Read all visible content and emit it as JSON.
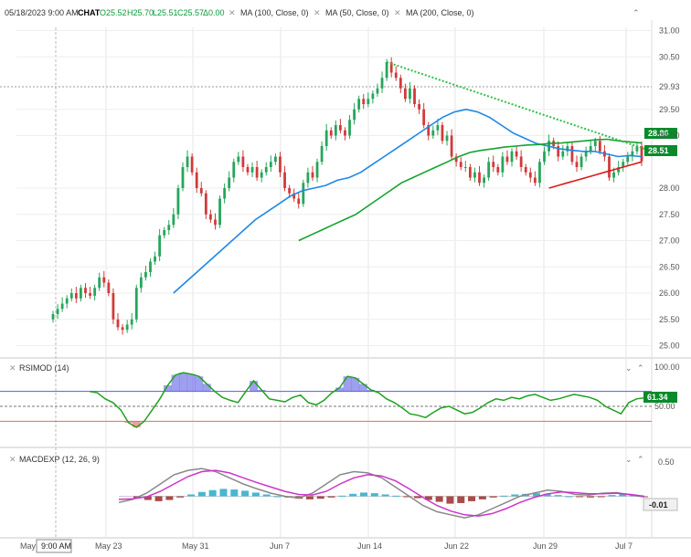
{
  "header": {
    "datetime": "05/18/2023 9:00 AM",
    "symbol": "CHAT",
    "open": "O25.52",
    "high": "H25.70",
    "low": "L25.51",
    "close": "C25.57",
    "change": "Δ0.00",
    "studies": [
      "MA (100, Close, 0)",
      "MA (50, Close, 0)",
      "MA (200, Close, 0)"
    ]
  },
  "price_axis": {
    "ticks": [
      "31.00",
      "30.50",
      "29.50",
      "29.00",
      "28.00",
      "27.50",
      "27.00",
      "26.50",
      "26.00",
      "25.50",
      "25.00"
    ],
    "reference_label": "29.93",
    "badges": [
      {
        "value": "28.86",
        "color": "#0a8a2a"
      },
      {
        "value": "28.51",
        "color": "#0a8a2a"
      }
    ]
  },
  "rsi_panel": {
    "title": "RSIMOD (14)",
    "ticks": [
      "100.00",
      "50.00"
    ],
    "value": "61.34"
  },
  "macd_panel": {
    "title": "MACDEXP (12, 26, 9)",
    "ticks": [
      "0.50"
    ],
    "value": "-0.01"
  },
  "time_axis": {
    "labels": [
      "May",
      "9:00 AM",
      "May 23",
      "May 31",
      "Jun 7",
      "Jun 14",
      "Jun 22",
      "Jun 29",
      "Jul 7"
    ]
  },
  "colors": {
    "up": "#26a65b",
    "down": "#d23a3a",
    "ma100": "#1e88e5",
    "ma50": "#14a32d",
    "ma200": "#d81b1b",
    "trendline": "#2fbf4a",
    "rsi": "#1fa01f",
    "macd": "#888888",
    "signal": "#cc33cc"
  },
  "chart_data": [
    {
      "type": "candlestick",
      "title": "CHAT",
      "ylim": [
        24.8,
        31.2
      ],
      "x_labels": [
        "May 23",
        "May 31",
        "Jun 7",
        "Jun 14",
        "Jun 22",
        "Jun 29",
        "Jul 7"
      ],
      "close": [
        25.6,
        25.7,
        25.8,
        25.9,
        26.0,
        25.9,
        26.1,
        26.0,
        25.95,
        26.1,
        26.3,
        26.2,
        26.0,
        25.5,
        25.35,
        25.3,
        25.4,
        25.5,
        26.1,
        26.3,
        26.4,
        26.6,
        26.7,
        27.1,
        27.2,
        27.3,
        27.5,
        28.0,
        28.4,
        28.6,
        28.3,
        28.0,
        27.9,
        27.5,
        27.4,
        27.3,
        27.8,
        28.0,
        28.2,
        28.5,
        28.6,
        28.4,
        28.3,
        28.4,
        28.2,
        28.3,
        28.4,
        28.5,
        28.6,
        28.3,
        28.0,
        27.9,
        27.8,
        27.7,
        28.1,
        28.3,
        28.2,
        28.5,
        28.8,
        29.1,
        29.0,
        29.2,
        29.1,
        29.0,
        29.3,
        29.5,
        29.7,
        29.6,
        29.7,
        29.8,
        29.9,
        30.1,
        30.4,
        30.2,
        30.1,
        29.9,
        29.7,
        29.9,
        29.6,
        29.5,
        29.2,
        29.0,
        29.1,
        29.2,
        28.9,
        29.0,
        28.6,
        28.5,
        28.4,
        28.4,
        28.2,
        28.3,
        28.1,
        28.2,
        28.5,
        28.4,
        28.3,
        28.6,
        28.5,
        28.7,
        28.6,
        28.4,
        28.3,
        28.2,
        28.1,
        28.5,
        28.7,
        28.9,
        28.8,
        28.6,
        28.7,
        28.8,
        28.5,
        28.4,
        28.6,
        28.7,
        28.8,
        28.9,
        28.7,
        28.6,
        28.2,
        28.3,
        28.4,
        28.5,
        28.6,
        28.7,
        28.8,
        28.51
      ],
      "series": [
        {
          "name": "MA (100, Close, 0)",
          "color": "#1e88e5",
          "x_start": 26,
          "values": [
            26.0,
            26.2,
            26.4,
            26.6,
            26.8,
            27.0,
            27.2,
            27.4,
            27.55,
            27.7,
            27.85,
            27.95,
            28.0,
            28.05,
            28.15,
            28.2,
            28.3,
            28.45,
            28.6,
            28.75,
            28.9,
            29.05,
            29.2,
            29.35,
            29.45,
            29.5,
            29.45,
            29.35,
            29.2,
            29.05,
            28.95,
            28.85,
            28.8,
            28.75,
            28.72,
            28.7,
            28.7,
            28.65,
            28.6,
            28.62,
            28.6
          ]
        },
        {
          "name": "MA (50, Close, 0)",
          "color": "#14a32d",
          "x_start": 53,
          "values": [
            27.0,
            27.1,
            27.2,
            27.3,
            27.4,
            27.5,
            27.65,
            27.8,
            27.95,
            28.1,
            28.2,
            28.3,
            28.4,
            28.5,
            28.6,
            28.68,
            28.72,
            28.75,
            28.78,
            28.8,
            28.82,
            28.83,
            28.85,
            28.86,
            28.88,
            28.9,
            28.92,
            28.93,
            28.9,
            28.88,
            28.86
          ]
        },
        {
          "name": "MA (200, Close, 0)",
          "color": "#d81b1b",
          "x_start": 107,
          "values": [
            28.0,
            28.05,
            28.1,
            28.15,
            28.2,
            28.25,
            28.3,
            28.35,
            28.4,
            28.45,
            28.5
          ]
        }
      ]
    },
    {
      "type": "line",
      "title": "RSIMOD (14)",
      "ylim": [
        0,
        100
      ],
      "values": [
        70,
        68,
        60,
        55,
        45,
        28,
        22,
        30,
        45,
        60,
        78,
        92,
        95,
        93,
        90,
        80,
        70,
        62,
        58,
        55,
        70,
        84,
        72,
        60,
        58,
        56,
        62,
        65,
        55,
        52,
        58,
        68,
        75,
        90,
        88,
        80,
        72,
        68,
        60,
        55,
        48,
        40,
        38,
        35,
        42,
        48,
        50,
        45,
        40,
        42,
        48,
        55,
        60,
        58,
        62,
        60,
        64,
        66,
        62,
        58,
        60,
        63,
        66,
        64,
        62,
        58,
        50,
        45,
        40,
        55,
        60,
        61.34
      ]
    },
    {
      "type": "bar",
      "title": "MACDEXP (12, 26, 9)",
      "ylim": [
        -0.6,
        0.6
      ],
      "values": [
        -0.03,
        -0.06,
        -0.08,
        -0.06,
        -0.02,
        0.03,
        0.07,
        0.1,
        0.12,
        0.11,
        0.09,
        0.06,
        0.03,
        0.0,
        -0.02,
        -0.04,
        -0.05,
        -0.04,
        -0.02,
        0.01,
        0.04,
        0.06,
        0.05,
        0.03,
        0.01,
        -0.01,
        -0.03,
        -0.06,
        -0.09,
        -0.12,
        -0.11,
        -0.08,
        -0.05,
        -0.02,
        0.01,
        0.03,
        0.04,
        0.05,
        0.04,
        0.02,
        0.0,
        -0.01,
        -0.02,
        -0.01,
        0.02,
        0.04,
        0.03,
        -0.01
      ],
      "series": [
        {
          "name": "MACD",
          "values": [
            -0.1,
            -0.05,
            0.05,
            0.2,
            0.35,
            0.42,
            0.45,
            0.4,
            0.3,
            0.2,
            0.12,
            0.05,
            0.0,
            -0.03,
            0.05,
            0.2,
            0.35,
            0.4,
            0.38,
            0.3,
            0.15,
            0.0,
            -0.15,
            -0.25,
            -0.3,
            -0.35,
            -0.3,
            -0.2,
            -0.1,
            0.0,
            0.05,
            0.1,
            0.08,
            0.03,
            0.02,
            0.05,
            0.06,
            0.02,
            -0.01
          ]
        },
        {
          "name": "Signal",
          "values": [
            -0.05,
            -0.04,
            -0.01,
            0.08,
            0.2,
            0.32,
            0.4,
            0.42,
            0.38,
            0.3,
            0.22,
            0.15,
            0.08,
            0.03,
            0.02,
            0.08,
            0.2,
            0.3,
            0.35,
            0.33,
            0.25,
            0.12,
            -0.02,
            -0.15,
            -0.24,
            -0.3,
            -0.32,
            -0.28,
            -0.2,
            -0.1,
            -0.02,
            0.04,
            0.07,
            0.06,
            0.04,
            0.04,
            0.05,
            0.03,
            0.0
          ]
        }
      ]
    }
  ]
}
